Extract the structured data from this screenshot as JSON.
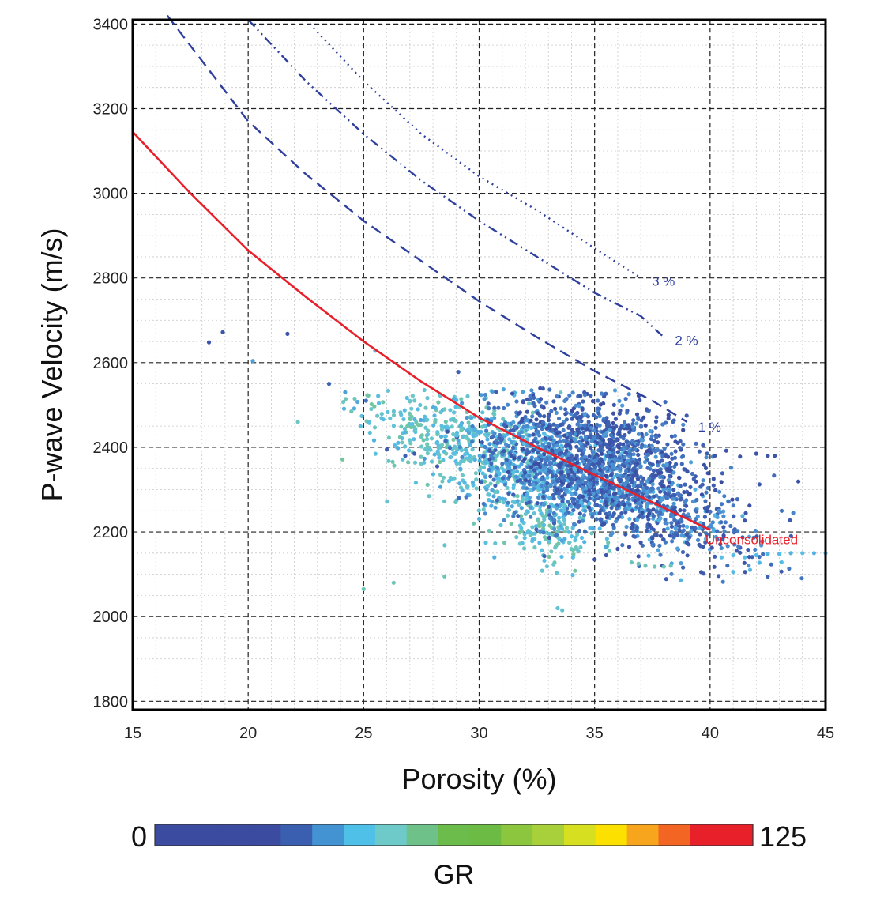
{
  "chart_data": {
    "type": "scatter",
    "xlabel": "Porosity (%)",
    "ylabel": "P-wave Velocity (m/s)",
    "xlim": [
      15,
      45
    ],
    "ylim": [
      1780,
      3410
    ],
    "xticks": [
      15,
      20,
      25,
      30,
      35,
      40,
      45
    ],
    "yticks": [
      1800,
      2000,
      2200,
      2400,
      2600,
      2800,
      3000,
      3200,
      3400
    ],
    "grid": true,
    "curves": [
      {
        "label": "Unconsolidated",
        "style": "solid",
        "color": "#e8202a",
        "points": [
          [
            15,
            3145
          ],
          [
            17.5,
            3000
          ],
          [
            20,
            2865
          ],
          [
            22.5,
            2755
          ],
          [
            25,
            2650
          ],
          [
            27.5,
            2555
          ],
          [
            30,
            2470
          ],
          [
            32.5,
            2400
          ],
          [
            35,
            2335
          ],
          [
            37.5,
            2270
          ],
          [
            40,
            2205
          ]
        ]
      },
      {
        "label": "1 %",
        "style": "dashed",
        "color": "#2e3f9e",
        "points": [
          [
            16.5,
            3420
          ],
          [
            20,
            3170
          ],
          [
            22.5,
            3045
          ],
          [
            25,
            2935
          ],
          [
            27.5,
            2840
          ],
          [
            30,
            2745
          ],
          [
            32.5,
            2660
          ],
          [
            35,
            2580
          ],
          [
            37.5,
            2510
          ],
          [
            39,
            2460
          ]
        ]
      },
      {
        "label": "2 %",
        "style": "dashdotdot",
        "color": "#2e3f9e",
        "points": [
          [
            20,
            3410
          ],
          [
            22.5,
            3265
          ],
          [
            25,
            3140
          ],
          [
            27.5,
            3030
          ],
          [
            30,
            2935
          ],
          [
            32.5,
            2850
          ],
          [
            35,
            2765
          ],
          [
            37,
            2710
          ],
          [
            38,
            2660
          ]
        ]
      },
      {
        "label": "3 %",
        "style": "dotted",
        "color": "#2e3f9e",
        "points": [
          [
            22.5,
            3410
          ],
          [
            25,
            3265
          ],
          [
            27.5,
            3140
          ],
          [
            30,
            3040
          ],
          [
            32.5,
            2960
          ],
          [
            35,
            2870
          ],
          [
            37,
            2800
          ]
        ]
      }
    ],
    "scatter_regions": [
      {
        "cx": 35.5,
        "cy": 2380,
        "sx": 2.2,
        "sy": 70,
        "n": 1100,
        "gr": [
          0,
          25
        ]
      },
      {
        "cx": 33.5,
        "cy": 2330,
        "sx": 2.0,
        "sy": 60,
        "n": 700,
        "gr": [
          8,
          32
        ]
      },
      {
        "cx": 31.0,
        "cy": 2360,
        "sx": 2.2,
        "sy": 70,
        "n": 500,
        "gr": [
          25,
          42
        ]
      },
      {
        "cx": 27.5,
        "cy": 2440,
        "sx": 1.6,
        "sy": 45,
        "n": 160,
        "gr": [
          28,
          45
        ]
      },
      {
        "cx": 38.5,
        "cy": 2230,
        "sx": 2.0,
        "sy": 50,
        "n": 300,
        "gr": [
          5,
          30
        ]
      },
      {
        "cx": 33.0,
        "cy": 2200,
        "sx": 1.0,
        "sy": 40,
        "n": 120,
        "gr": [
          30,
          45
        ]
      }
    ],
    "scatter_points": [
      [
        18.3,
        2648,
        5
      ],
      [
        18.9,
        2672,
        5
      ],
      [
        21.7,
        2668,
        5
      ],
      [
        20.2,
        2604,
        25
      ],
      [
        25.5,
        2628,
        30
      ],
      [
        29.1,
        2578,
        12
      ],
      [
        23.5,
        2550,
        12
      ],
      [
        24.2,
        2530,
        25
      ],
      [
        25.1,
        2510,
        15
      ],
      [
        26.0,
        2395,
        10
      ],
      [
        26.8,
        2380,
        10
      ],
      [
        27.2,
        2385,
        8
      ],
      [
        25.0,
        2065,
        40
      ],
      [
        26.3,
        2080,
        40
      ],
      [
        28.5,
        2095,
        40
      ],
      [
        33.4,
        2020,
        35
      ],
      [
        33.6,
        2015,
        35
      ],
      [
        40.5,
        2140,
        30
      ],
      [
        41.0,
        2145,
        30
      ],
      [
        41.5,
        2140,
        30
      ],
      [
        42.0,
        2145,
        30
      ],
      [
        42.5,
        2148,
        28
      ],
      [
        43.0,
        2148,
        30
      ],
      [
        43.5,
        2150,
        28
      ],
      [
        44.0,
        2150,
        30
      ],
      [
        44.5,
        2150,
        28
      ],
      [
        45.0,
        2150,
        30
      ],
      [
        43.6,
        2245,
        20
      ],
      [
        43.1,
        2250,
        15
      ],
      [
        42.8,
        2380,
        5
      ],
      [
        42.5,
        2380,
        5
      ],
      [
        42.0,
        2385,
        5
      ],
      [
        41.3,
        2378,
        5
      ],
      [
        40.7,
        2392,
        5
      ],
      [
        40.2,
        2380,
        5
      ],
      [
        35.0,
        2135,
        5
      ],
      [
        35.5,
        2145,
        5
      ],
      [
        36.0,
        2160,
        5
      ],
      [
        36.5,
        2165,
        5
      ],
      [
        37.0,
        2175,
        5
      ],
      [
        37.5,
        2185,
        5
      ],
      [
        37.2,
        2120,
        40
      ],
      [
        37.6,
        2118,
        40
      ],
      [
        38.0,
        2118,
        40
      ],
      [
        38.3,
        2120,
        40
      ],
      [
        36.9,
        2125,
        40
      ],
      [
        36.6,
        2128,
        40
      ]
    ],
    "colorbar": {
      "label": "GR",
      "min": "0",
      "max": "125",
      "colors": [
        "#3a4ba0",
        "#3a4ba0",
        "#3a4ba0",
        "#3a4ba0",
        "#3a5fb0",
        "#4393d3",
        "#4fc0e8",
        "#6ecac8",
        "#6fc18a",
        "#6cbc4b",
        "#6bbb45",
        "#8cc63f",
        "#a8d03a",
        "#d6e021",
        "#fce100",
        "#f6a51d",
        "#f26522",
        "#e8202a",
        "#e8202a"
      ]
    },
    "gr_color_scale": [
      [
        0,
        "#3a4ba0"
      ],
      [
        12,
        "#3f63b5"
      ],
      [
        22,
        "#4a8fd1"
      ],
      [
        30,
        "#55bde6"
      ],
      [
        38,
        "#6cc6c6"
      ],
      [
        45,
        "#74c493"
      ],
      [
        60,
        "#6bbb45"
      ],
      [
        80,
        "#b3d334"
      ],
      [
        95,
        "#fce100"
      ],
      [
        110,
        "#f26522"
      ],
      [
        125,
        "#e8202a"
      ]
    ]
  }
}
